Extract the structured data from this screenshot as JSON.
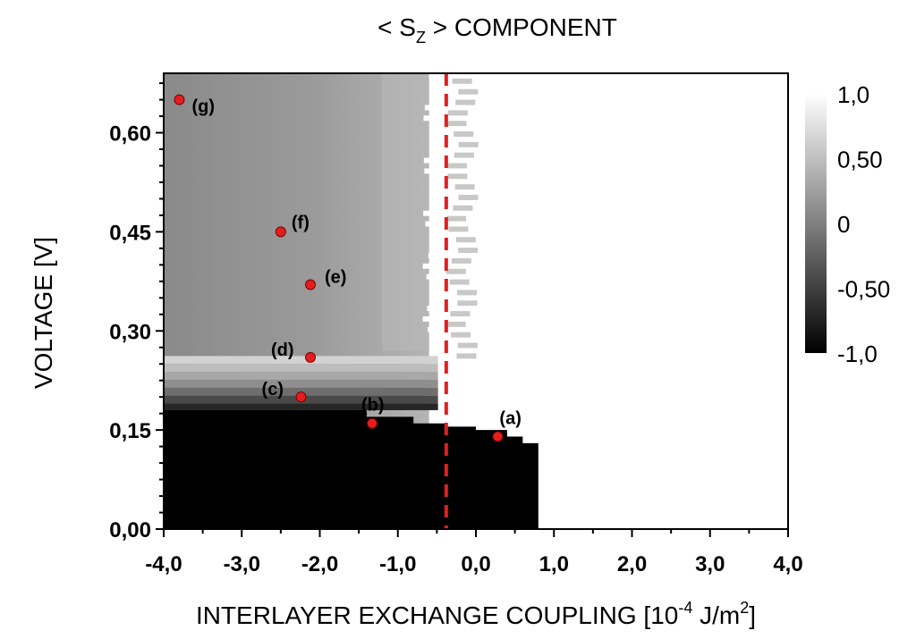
{
  "chart_data": {
    "type": "heatmap",
    "title": {
      "prefix": "< S",
      "subscript": "Z",
      "suffix": " > COMPONENT"
    },
    "xlabel": {
      "main": "INTERLAYER EXCHANGE COUPLING [10",
      "sup1": "-4",
      "mid": " J/m",
      "sup2": "2",
      "end": "]"
    },
    "ylabel": "VOLTAGE [V]",
    "xlim": [
      -4.0,
      4.0
    ],
    "ylim": [
      0.0,
      0.69
    ],
    "x_ticks": [
      {
        "value": -4.0,
        "label": "-4,0"
      },
      {
        "value": -3.0,
        "label": "-3,0"
      },
      {
        "value": -2.0,
        "label": "-2,0"
      },
      {
        "value": -1.0,
        "label": "-1,0"
      },
      {
        "value": 0.0,
        "label": "0,0"
      },
      {
        "value": 1.0,
        "label": "1,0"
      },
      {
        "value": 2.0,
        "label": "2,0"
      },
      {
        "value": 3.0,
        "label": "3,0"
      },
      {
        "value": 4.0,
        "label": "4,0"
      }
    ],
    "y_ticks": [
      {
        "value": 0.0,
        "label": "0,00"
      },
      {
        "value": 0.15,
        "label": "0,15"
      },
      {
        "value": 0.3,
        "label": "0,30"
      },
      {
        "value": 0.45,
        "label": "0,45"
      },
      {
        "value": 0.6,
        "label": "0,60"
      }
    ],
    "colorbar": {
      "range": [
        -1.0,
        1.0
      ],
      "ticks": [
        {
          "value": 1.0,
          "label": "1,0"
        },
        {
          "value": 0.5,
          "label": "0,50"
        },
        {
          "value": 0.0,
          "label": "0"
        },
        {
          "value": -0.5,
          "label": "-0,50"
        },
        {
          "value": -1.0,
          "label": "-1,0"
        }
      ]
    },
    "regions": {
      "black_region_top_left": 0.18,
      "black_region_right_edge": 0.8,
      "step_boundary": [
        {
          "x": -4.0,
          "y": 0.18
        },
        {
          "x": -2.0,
          "y": 0.18
        },
        {
          "x": -1.4,
          "y": 0.17
        },
        {
          "x": -0.8,
          "y": 0.16
        },
        {
          "x": -0.4,
          "y": 0.155
        },
        {
          "x": 0.0,
          "y": 0.15
        },
        {
          "x": 0.4,
          "y": 0.14
        },
        {
          "x": 0.6,
          "y": 0.13
        },
        {
          "x": 0.8,
          "y": 0.12
        }
      ],
      "left_region_sz": -0.1,
      "right_region_sz": 1.0,
      "transition_x_top": -0.4,
      "transition_x_mid": -0.6,
      "transition_x_low": -0.55
    },
    "dashed_line": {
      "x": -0.38,
      "color": "#e41e1e"
    },
    "points": [
      {
        "label": "(a)",
        "x": 0.28,
        "y": 0.14
      },
      {
        "label": "(b)",
        "x": -1.33,
        "y": 0.16
      },
      {
        "label": "(c)",
        "x": -2.24,
        "y": 0.2
      },
      {
        "label": "(d)",
        "x": -2.12,
        "y": 0.26
      },
      {
        "label": "(e)",
        "x": -2.12,
        "y": 0.37
      },
      {
        "label": "(f)",
        "x": -2.5,
        "y": 0.45
      },
      {
        "label": "(g)",
        "x": -3.8,
        "y": 0.65
      }
    ],
    "point_color": "#e41e1e",
    "grid": false
  }
}
